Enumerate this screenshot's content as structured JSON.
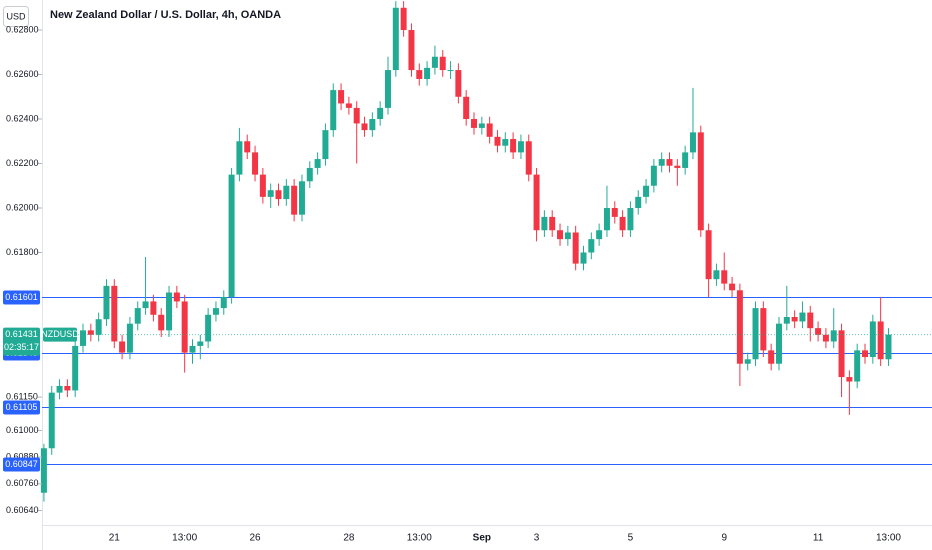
{
  "chart_data": {
    "type": "candlestick",
    "title": "New Zealand Dollar / U.S. Dollar, 4h, OANDA",
    "currency": "USD",
    "symbol": "NZDUSD",
    "countdown": "02:35:17",
    "last_price": 0.61431,
    "up_color": "#22ab94",
    "down_color": "#f23645",
    "line_color": "#2962ff",
    "ylim": [
      0.60575,
      0.62935
    ],
    "yticks": [
      {
        "value": 0.628,
        "label": "0.62800"
      },
      {
        "value": 0.626,
        "label": "0.62600"
      },
      {
        "value": 0.624,
        "label": "0.62400"
      },
      {
        "value": 0.622,
        "label": "0.62200"
      },
      {
        "value": 0.62,
        "label": "0.62000"
      },
      {
        "value": 0.618,
        "label": "0.61800"
      },
      {
        "value": 0.6115,
        "label": "0.61150"
      },
      {
        "value": 0.61,
        "label": "0.61000"
      },
      {
        "value": 0.6088,
        "label": "0.60880"
      },
      {
        "value": 0.6076,
        "label": "0.60760"
      },
      {
        "value": 0.6064,
        "label": "0.60640"
      }
    ],
    "hlines": [
      0.61601,
      0.61349,
      0.61105,
      0.60847
    ],
    "categories": [
      null,
      null,
      null,
      null,
      null,
      null,
      null,
      null,
      null,
      "21",
      null,
      null,
      null,
      null,
      null,
      null,
      null,
      null,
      "13:00",
      null,
      null,
      null,
      null,
      null,
      null,
      null,
      null,
      "26",
      null,
      null,
      null,
      null,
      null,
      null,
      null,
      null,
      null,
      null,
      null,
      "28",
      null,
      null,
      null,
      null,
      null,
      null,
      null,
      null,
      "13:00",
      null,
      null,
      null,
      null,
      null,
      null,
      null,
      "Sep",
      null,
      null,
      null,
      null,
      null,
      null,
      "3",
      null,
      null,
      null,
      null,
      null,
      null,
      null,
      null,
      null,
      null,
      null,
      "5",
      null,
      null,
      null,
      null,
      null,
      null,
      null,
      null,
      null,
      null,
      null,
      "9",
      null,
      null,
      null,
      null,
      null,
      null,
      null,
      null,
      null,
      null,
      null,
      "11",
      null,
      null,
      null,
      null,
      null,
      null,
      null,
      null,
      "13:00"
    ],
    "ohlc": [
      [
        0.6072,
        0.6094,
        0.6068,
        0.6092
      ],
      [
        0.6092,
        0.612,
        0.6089,
        0.6117
      ],
      [
        0.6117,
        0.6123,
        0.6114,
        0.612
      ],
      [
        0.612,
        0.6123,
        0.6115,
        0.6118
      ],
      [
        0.6118,
        0.6141,
        0.6115,
        0.6138
      ],
      [
        0.6138,
        0.6148,
        0.6135,
        0.6145
      ],
      [
        0.6145,
        0.6148,
        0.614,
        0.6143
      ],
      [
        0.6143,
        0.6153,
        0.614,
        0.615
      ],
      [
        0.615,
        0.6168,
        0.6147,
        0.6165
      ],
      [
        0.6165,
        0.6168,
        0.6137,
        0.614
      ],
      [
        0.614,
        0.6143,
        0.6132,
        0.6135
      ],
      [
        0.6135,
        0.6151,
        0.6132,
        0.6148
      ],
      [
        0.6148,
        0.6158,
        0.6145,
        0.6155
      ],
      [
        0.6155,
        0.6178,
        0.6152,
        0.6158
      ],
      [
        0.6158,
        0.6161,
        0.6149,
        0.6152
      ],
      [
        0.6152,
        0.6155,
        0.6142,
        0.6145
      ],
      [
        0.6145,
        0.6165,
        0.6142,
        0.6162
      ],
      [
        0.6162,
        0.6165,
        0.6155,
        0.6158
      ],
      [
        0.6158,
        0.6161,
        0.6126,
        0.6135
      ],
      [
        0.6135,
        0.6141,
        0.613,
        0.6138
      ],
      [
        0.6138,
        0.6143,
        0.6132,
        0.614
      ],
      [
        0.614,
        0.6155,
        0.6137,
        0.6152
      ],
      [
        0.6152,
        0.6158,
        0.6149,
        0.6155
      ],
      [
        0.6155,
        0.6163,
        0.6152,
        0.616
      ],
      [
        0.616,
        0.6218,
        0.6157,
        0.6215
      ],
      [
        0.6215,
        0.6236,
        0.6212,
        0.623
      ],
      [
        0.623,
        0.6233,
        0.6222,
        0.6225
      ],
      [
        0.6225,
        0.6228,
        0.6212,
        0.6215
      ],
      [
        0.6215,
        0.6218,
        0.6202,
        0.6205
      ],
      [
        0.6205,
        0.6211,
        0.62,
        0.6208
      ],
      [
        0.6208,
        0.6211,
        0.6201,
        0.6204
      ],
      [
        0.6204,
        0.6213,
        0.6201,
        0.621
      ],
      [
        0.621,
        0.6213,
        0.6194,
        0.6197
      ],
      [
        0.6197,
        0.6215,
        0.6194,
        0.6212
      ],
      [
        0.6212,
        0.6221,
        0.6209,
        0.6218
      ],
      [
        0.6218,
        0.6225,
        0.6215,
        0.6222
      ],
      [
        0.6222,
        0.6238,
        0.6219,
        0.6235
      ],
      [
        0.6235,
        0.6256,
        0.6232,
        0.6253
      ],
      [
        0.6253,
        0.6256,
        0.6244,
        0.6247
      ],
      [
        0.6247,
        0.625,
        0.6242,
        0.6245
      ],
      [
        0.6245,
        0.6248,
        0.622,
        0.6238
      ],
      [
        0.6238,
        0.6241,
        0.6232,
        0.6235
      ],
      [
        0.6235,
        0.6243,
        0.6232,
        0.624
      ],
      [
        0.624,
        0.6248,
        0.6237,
        0.6245
      ],
      [
        0.6245,
        0.6268,
        0.6242,
        0.6262
      ],
      [
        0.6262,
        0.6293,
        0.6259,
        0.629
      ],
      [
        0.629,
        0.6293,
        0.6277,
        0.628
      ],
      [
        0.628,
        0.6283,
        0.6259,
        0.6262
      ],
      [
        0.6262,
        0.6265,
        0.6255,
        0.6258
      ],
      [
        0.6258,
        0.6266,
        0.6255,
        0.6263
      ],
      [
        0.6263,
        0.6273,
        0.626,
        0.6268
      ],
      [
        0.6268,
        0.6271,
        0.6259,
        0.6262
      ],
      [
        0.6262,
        0.6266,
        0.6258,
        0.6262
      ],
      [
        0.6262,
        0.6265,
        0.6247,
        0.625
      ],
      [
        0.625,
        0.6253,
        0.6237,
        0.624
      ],
      [
        0.624,
        0.6243,
        0.6233,
        0.6236
      ],
      [
        0.6236,
        0.6241,
        0.6233,
        0.6238
      ],
      [
        0.6238,
        0.6241,
        0.6229,
        0.6232
      ],
      [
        0.6232,
        0.6235,
        0.6225,
        0.6228
      ],
      [
        0.6228,
        0.6234,
        0.6225,
        0.6231
      ],
      [
        0.6231,
        0.6234,
        0.6222,
        0.6225
      ],
      [
        0.6225,
        0.6233,
        0.6222,
        0.623
      ],
      [
        0.623,
        0.6233,
        0.6212,
        0.6215
      ],
      [
        0.6215,
        0.6218,
        0.6185,
        0.619
      ],
      [
        0.619,
        0.6199,
        0.6187,
        0.6196
      ],
      [
        0.6196,
        0.6199,
        0.6187,
        0.619
      ],
      [
        0.619,
        0.6193,
        0.6183,
        0.6186
      ],
      [
        0.6186,
        0.6192,
        0.6183,
        0.6189
      ],
      [
        0.6189,
        0.6192,
        0.6172,
        0.6175
      ],
      [
        0.6175,
        0.6183,
        0.6172,
        0.618
      ],
      [
        0.618,
        0.6189,
        0.6177,
        0.6186
      ],
      [
        0.6186,
        0.6193,
        0.6183,
        0.619
      ],
      [
        0.619,
        0.621,
        0.6187,
        0.62
      ],
      [
        0.62,
        0.6203,
        0.6193,
        0.6196
      ],
      [
        0.6196,
        0.6199,
        0.6187,
        0.619
      ],
      [
        0.619,
        0.6203,
        0.6187,
        0.62
      ],
      [
        0.62,
        0.6208,
        0.6197,
        0.6205
      ],
      [
        0.6205,
        0.6213,
        0.6202,
        0.621
      ],
      [
        0.621,
        0.6222,
        0.6207,
        0.6219
      ],
      [
        0.6219,
        0.6225,
        0.6216,
        0.6222
      ],
      [
        0.6222,
        0.6225,
        0.6216,
        0.6219
      ],
      [
        0.6219,
        0.6222,
        0.621,
        0.6218
      ],
      [
        0.6218,
        0.6228,
        0.6215,
        0.6225
      ],
      [
        0.6225,
        0.6254,
        0.6222,
        0.6234
      ],
      [
        0.6234,
        0.6237,
        0.6187,
        0.619
      ],
      [
        0.619,
        0.6193,
        0.616,
        0.6168
      ],
      [
        0.6168,
        0.6175,
        0.6165,
        0.6172
      ],
      [
        0.6172,
        0.618,
        0.6163,
        0.6166
      ],
      [
        0.6166,
        0.6169,
        0.616,
        0.6163
      ],
      [
        0.6163,
        0.6166,
        0.612,
        0.613
      ],
      [
        0.613,
        0.6135,
        0.6127,
        0.6132
      ],
      [
        0.6132,
        0.6158,
        0.6129,
        0.6155
      ],
      [
        0.6155,
        0.6158,
        0.6133,
        0.6136
      ],
      [
        0.6136,
        0.6139,
        0.6127,
        0.613
      ],
      [
        0.613,
        0.6151,
        0.6127,
        0.6148
      ],
      [
        0.6148,
        0.6165,
        0.6145,
        0.6151
      ],
      [
        0.6151,
        0.6154,
        0.6146,
        0.6149
      ],
      [
        0.6149,
        0.6158,
        0.6146,
        0.6153
      ],
      [
        0.6153,
        0.6156,
        0.614,
        0.6146
      ],
      [
        0.6146,
        0.6149,
        0.614,
        0.6143
      ],
      [
        0.6143,
        0.6146,
        0.6137,
        0.614
      ],
      [
        0.614,
        0.6155,
        0.6137,
        0.6145
      ],
      [
        0.6145,
        0.6148,
        0.6115,
        0.6124
      ],
      [
        0.6124,
        0.6127,
        0.6107,
        0.6122
      ],
      [
        0.6122,
        0.6139,
        0.6119,
        0.6136
      ],
      [
        0.6136,
        0.6139,
        0.613,
        0.6133
      ],
      [
        0.6133,
        0.6152,
        0.613,
        0.6149
      ],
      [
        0.6149,
        0.616,
        0.6129,
        0.6132
      ],
      [
        0.6132,
        0.6146,
        0.6129,
        0.61431
      ]
    ]
  }
}
